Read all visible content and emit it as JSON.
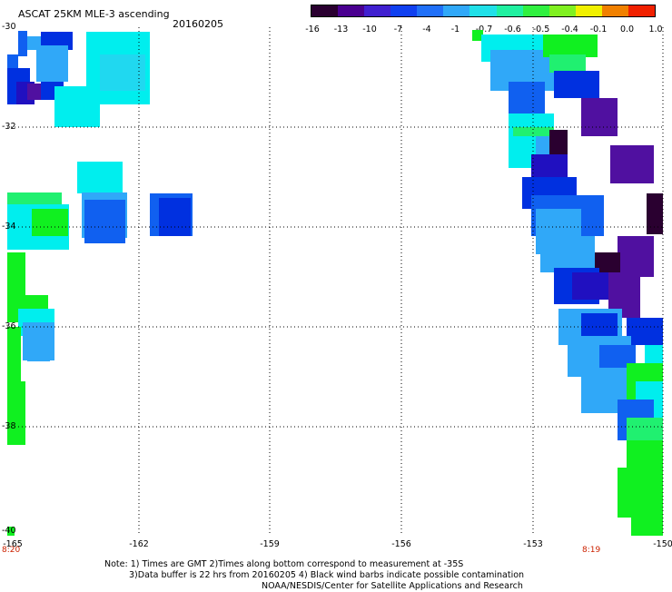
{
  "header": {
    "title": "ASCAT 25KM MLE-3 ascending",
    "date": "20160205"
  },
  "color_scale": {
    "labels": [
      "-16",
      "-13",
      "-10",
      "-7",
      "-4",
      "-1",
      "-0.7",
      "-0.6",
      "-0.5",
      "-0.4",
      "-0.1",
      "0.0",
      "1.0"
    ],
    "colors": [
      "#2a0030",
      "#4a0090",
      "#4020d0",
      "#1040f0",
      "#2070f8",
      "#30a8f8",
      "#20e0e8",
      "#20f0a0",
      "#30f040",
      "#80f020",
      "#f0f000",
      "#f08000",
      "#f02000"
    ]
  },
  "axes": {
    "lat_labels": [
      "-30",
      "-32",
      "-34",
      "-36",
      "-38",
      "-40"
    ],
    "lon_labels": [
      "-165",
      "-162",
      "-159",
      "-156",
      "-153",
      "-150"
    ],
    "lat_range": [
      -40,
      -30
    ],
    "lon_range": [
      -165,
      -150
    ]
  },
  "time_labels": [
    "8:20",
    "8:19"
  ],
  "notes": {
    "line1": "Note: 1) Times are GMT 2)Times along bottom correspond to measurement at -35S",
    "line2": "3)Data buffer is 22 hrs from 20160205 4) Black wind barbs indicate possible contamination",
    "line3": "NOAA/NESDIS/Center for Satellite Applications and Research"
  }
}
